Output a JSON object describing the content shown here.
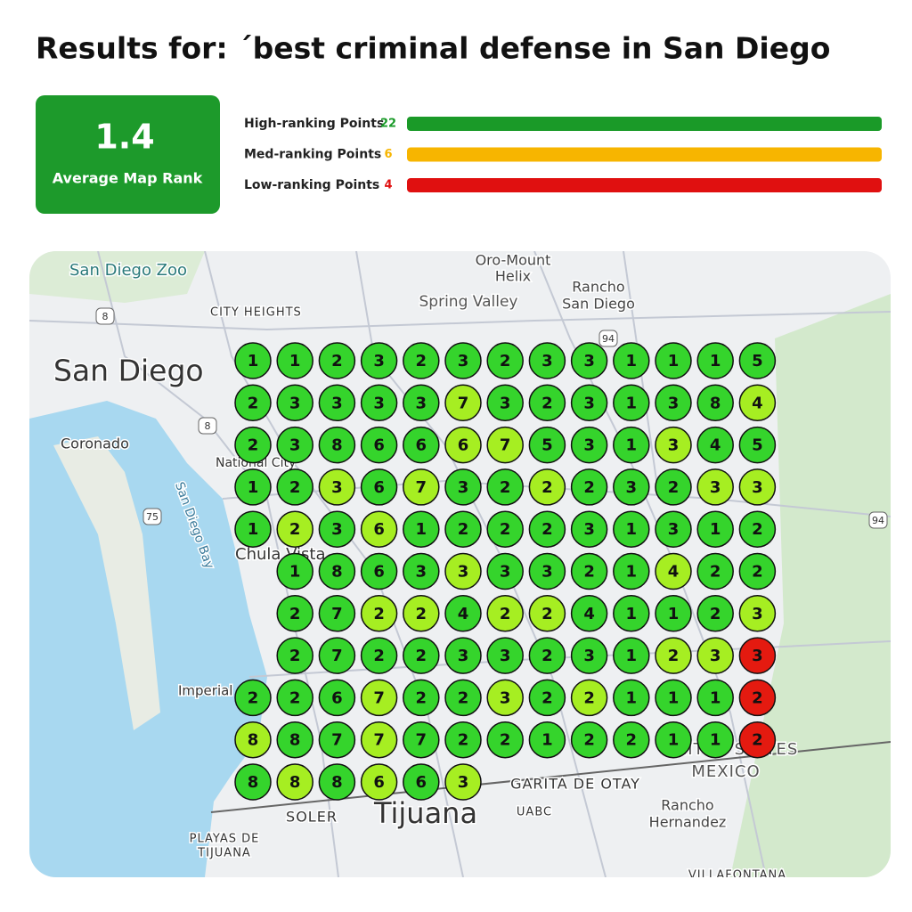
{
  "header": {
    "title": "Results for: ´best criminal defense in San Diego"
  },
  "summary": {
    "value": "1.4",
    "label": "Average Map Rank",
    "color": "#1d9a2b"
  },
  "stats": [
    {
      "label": "High-ranking Points",
      "count": 22,
      "color": "#1a9a28"
    },
    {
      "label": "Med-ranking Points",
      "count": 6,
      "color": "#f7b500"
    },
    {
      "label": "Low-ranking Points",
      "count": 4,
      "color": "#e01010"
    }
  ],
  "map": {
    "labels": [
      "San Diego Zoo",
      "Oro-Mount",
      "Helix",
      "Rancho",
      "San Diego",
      "CITY HEIGHTS",
      "Spring Valley",
      "San Diego",
      "Coronado",
      "National City",
      "San Diego Bay",
      "Chula Vista",
      "Imperial",
      "UNITED STATES",
      "MEXICO",
      "GARITA DE OTAY",
      "SOLER",
      "Tijuana",
      "UABC",
      "Rancho",
      "Hernandez",
      "PLAYAS DE",
      "TIJUANA",
      "VILLAFONTANA"
    ],
    "shields": [
      "8",
      "94",
      "8",
      "75",
      "94"
    ]
  },
  "grid": {
    "rows": [
      [
        {
          "rank": 1,
          "color": "#35d42c"
        },
        {
          "rank": 1,
          "color": "#35d42c"
        },
        {
          "rank": 2,
          "color": "#35d42c"
        },
        {
          "rank": 3,
          "color": "#35d42c"
        },
        {
          "rank": 2,
          "color": "#35d42c"
        },
        {
          "rank": 3,
          "color": "#35d42c"
        },
        {
          "rank": 2,
          "color": "#35d42c"
        },
        {
          "rank": 3,
          "color": "#35d42c"
        },
        {
          "rank": 3,
          "color": "#35d42c"
        },
        {
          "rank": 1,
          "color": "#35d42c"
        },
        {
          "rank": 1,
          "color": "#35d42c"
        },
        {
          "rank": 1,
          "color": "#35d42c"
        },
        {
          "rank": 5,
          "color": "#35d42c"
        }
      ],
      [
        {
          "rank": 2,
          "color": "#35d42c"
        },
        {
          "rank": 3,
          "color": "#35d42c"
        },
        {
          "rank": 3,
          "color": "#35d42c"
        },
        {
          "rank": 3,
          "color": "#35d42c"
        },
        {
          "rank": 3,
          "color": "#35d42c"
        },
        {
          "rank": 7,
          "color": "#a6ee22"
        },
        {
          "rank": 3,
          "color": "#35d42c"
        },
        {
          "rank": 2,
          "color": "#35d42c"
        },
        {
          "rank": 3,
          "color": "#35d42c"
        },
        {
          "rank": 1,
          "color": "#35d42c"
        },
        {
          "rank": 3,
          "color": "#35d42c"
        },
        {
          "rank": 8,
          "color": "#35d42c"
        },
        {
          "rank": 4,
          "color": "#a6ee22"
        }
      ],
      [
        {
          "rank": 2,
          "color": "#35d42c"
        },
        {
          "rank": 3,
          "color": "#35d42c"
        },
        {
          "rank": 8,
          "color": "#35d42c"
        },
        {
          "rank": 6,
          "color": "#35d42c"
        },
        {
          "rank": 6,
          "color": "#35d42c"
        },
        {
          "rank": 6,
          "color": "#a6ee22"
        },
        {
          "rank": 7,
          "color": "#a6ee22"
        },
        {
          "rank": 5,
          "color": "#35d42c"
        },
        {
          "rank": 3,
          "color": "#35d42c"
        },
        {
          "rank": 1,
          "color": "#35d42c"
        },
        {
          "rank": 3,
          "color": "#a6ee22"
        },
        {
          "rank": 4,
          "color": "#35d42c"
        },
        {
          "rank": 5,
          "color": "#35d42c"
        }
      ],
      [
        {
          "rank": 1,
          "color": "#35d42c"
        },
        {
          "rank": 2,
          "color": "#35d42c"
        },
        {
          "rank": 3,
          "color": "#a6ee22"
        },
        {
          "rank": 6,
          "color": "#35d42c"
        },
        {
          "rank": 7,
          "color": "#a6ee22"
        },
        {
          "rank": 3,
          "color": "#35d42c"
        },
        {
          "rank": 2,
          "color": "#35d42c"
        },
        {
          "rank": 2,
          "color": "#a6ee22"
        },
        {
          "rank": 2,
          "color": "#35d42c"
        },
        {
          "rank": 3,
          "color": "#35d42c"
        },
        {
          "rank": 2,
          "color": "#35d42c"
        },
        {
          "rank": 3,
          "color": "#a6ee22"
        },
        {
          "rank": 3,
          "color": "#a6ee22"
        }
      ],
      [
        {
          "rank": 1,
          "color": "#35d42c"
        },
        {
          "rank": 2,
          "color": "#a6ee22"
        },
        {
          "rank": 3,
          "color": "#35d42c"
        },
        {
          "rank": 6,
          "color": "#a6ee22"
        },
        {
          "rank": 1,
          "color": "#35d42c"
        },
        {
          "rank": 2,
          "color": "#35d42c"
        },
        {
          "rank": 2,
          "color": "#35d42c"
        },
        {
          "rank": 2,
          "color": "#35d42c"
        },
        {
          "rank": 3,
          "color": "#35d42c"
        },
        {
          "rank": 1,
          "color": "#35d42c"
        },
        {
          "rank": 3,
          "color": "#35d42c"
        },
        {
          "rank": 1,
          "color": "#35d42c"
        },
        {
          "rank": 2,
          "color": "#35d42c"
        }
      ],
      [
        null,
        {
          "rank": 1,
          "color": "#35d42c"
        },
        {
          "rank": 8,
          "color": "#35d42c"
        },
        {
          "rank": 6,
          "color": "#35d42c"
        },
        {
          "rank": 3,
          "color": "#35d42c"
        },
        {
          "rank": 3,
          "color": "#a6ee22"
        },
        {
          "rank": 3,
          "color": "#35d42c"
        },
        {
          "rank": 3,
          "color": "#35d42c"
        },
        {
          "rank": 2,
          "color": "#35d42c"
        },
        {
          "rank": 1,
          "color": "#35d42c"
        },
        {
          "rank": 4,
          "color": "#a6ee22"
        },
        {
          "rank": 2,
          "color": "#35d42c"
        },
        {
          "rank": 2,
          "color": "#35d42c"
        }
      ],
      [
        null,
        {
          "rank": 2,
          "color": "#35d42c"
        },
        {
          "rank": 7,
          "color": "#35d42c"
        },
        {
          "rank": 2,
          "color": "#a6ee22"
        },
        {
          "rank": 2,
          "color": "#a6ee22"
        },
        {
          "rank": 4,
          "color": "#35d42c"
        },
        {
          "rank": 2,
          "color": "#a6ee22"
        },
        {
          "rank": 2,
          "color": "#a6ee22"
        },
        {
          "rank": 4,
          "color": "#35d42c"
        },
        {
          "rank": 1,
          "color": "#35d42c"
        },
        {
          "rank": 1,
          "color": "#35d42c"
        },
        {
          "rank": 2,
          "color": "#35d42c"
        },
        {
          "rank": 3,
          "color": "#a6ee22"
        }
      ],
      [
        null,
        {
          "rank": 2,
          "color": "#35d42c"
        },
        {
          "rank": 7,
          "color": "#35d42c"
        },
        {
          "rank": 2,
          "color": "#35d42c"
        },
        {
          "rank": 2,
          "color": "#35d42c"
        },
        {
          "rank": 3,
          "color": "#35d42c"
        },
        {
          "rank": 3,
          "color": "#35d42c"
        },
        {
          "rank": 2,
          "color": "#35d42c"
        },
        {
          "rank": 3,
          "color": "#35d42c"
        },
        {
          "rank": 1,
          "color": "#35d42c"
        },
        {
          "rank": 2,
          "color": "#a6ee22"
        },
        {
          "rank": 3,
          "color": "#a6ee22"
        },
        {
          "rank": 3,
          "color": "#e41a10"
        }
      ],
      [
        {
          "rank": 2,
          "color": "#35d42c"
        },
        {
          "rank": 2,
          "color": "#35d42c"
        },
        {
          "rank": 6,
          "color": "#35d42c"
        },
        {
          "rank": 7,
          "color": "#a6ee22"
        },
        {
          "rank": 2,
          "color": "#35d42c"
        },
        {
          "rank": 2,
          "color": "#35d42c"
        },
        {
          "rank": 3,
          "color": "#a6ee22"
        },
        {
          "rank": 2,
          "color": "#35d42c"
        },
        {
          "rank": 2,
          "color": "#a6ee22"
        },
        {
          "rank": 1,
          "color": "#35d42c"
        },
        {
          "rank": 1,
          "color": "#35d42c"
        },
        {
          "rank": 1,
          "color": "#35d42c"
        },
        {
          "rank": 2,
          "color": "#e41a10"
        }
      ],
      [
        {
          "rank": 8,
          "color": "#a6ee22"
        },
        {
          "rank": 8,
          "color": "#35d42c"
        },
        {
          "rank": 7,
          "color": "#35d42c"
        },
        {
          "rank": 7,
          "color": "#a6ee22"
        },
        {
          "rank": 7,
          "color": "#35d42c"
        },
        {
          "rank": 2,
          "color": "#35d42c"
        },
        {
          "rank": 2,
          "color": "#35d42c"
        },
        {
          "rank": 1,
          "color": "#35d42c"
        },
        {
          "rank": 2,
          "color": "#35d42c"
        },
        {
          "rank": 2,
          "color": "#35d42c"
        },
        {
          "rank": 1,
          "color": "#35d42c"
        },
        {
          "rank": 1,
          "color": "#35d42c"
        },
        {
          "rank": 2,
          "color": "#e41a10"
        }
      ],
      [
        {
          "rank": 8,
          "color": "#35d42c"
        },
        {
          "rank": 8,
          "color": "#a6ee22"
        },
        {
          "rank": 8,
          "color": "#35d42c"
        },
        {
          "rank": 6,
          "color": "#a6ee22"
        },
        {
          "rank": 6,
          "color": "#35d42c"
        },
        {
          "rank": 3,
          "color": "#a6ee22"
        }
      ]
    ]
  }
}
